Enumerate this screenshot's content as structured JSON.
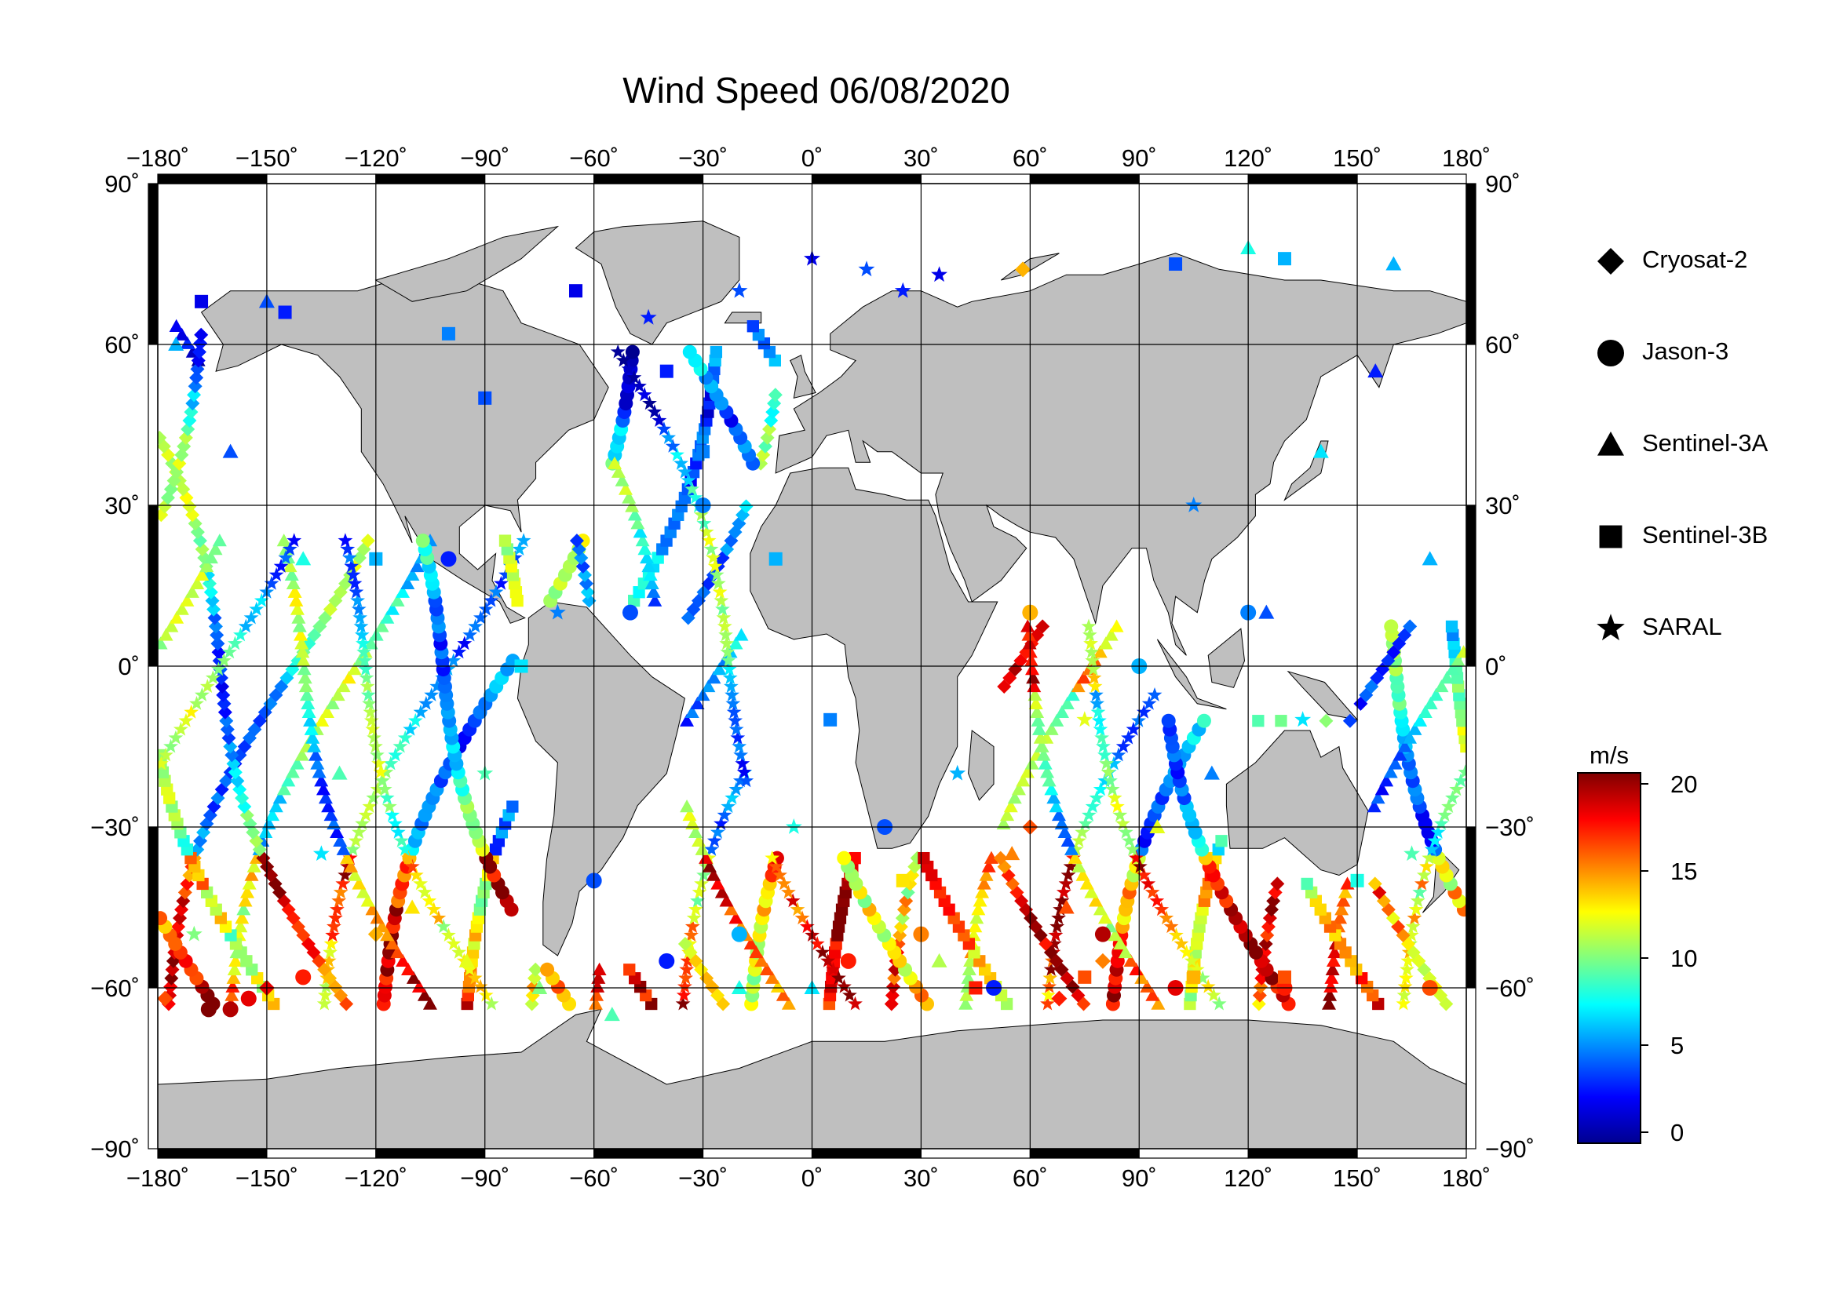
{
  "title": "Wind Speed 06/08/2020",
  "x_ticks": [
    "−180˚",
    "−150˚",
    "−120˚",
    "−90˚",
    "−60˚",
    "−30˚",
    "0˚",
    "30˚",
    "60˚",
    "90˚",
    "120˚",
    "150˚",
    "180˚"
  ],
  "y_ticks": [
    "90˚",
    "60˚",
    "30˚",
    "0˚",
    "−30˚",
    "−60˚",
    "−90˚"
  ],
  "y_ticks_right": [
    "90˚",
    "60˚",
    "30˚",
    "0˚",
    "−30˚",
    "−60˚",
    "−90˚"
  ],
  "legend": [
    {
      "label": "Cryosat-2",
      "marker": "diamond"
    },
    {
      "label": "Jason-3",
      "marker": "circle"
    },
    {
      "label": "Sentinel-3A",
      "marker": "triangle"
    },
    {
      "label": "Sentinel-3B",
      "marker": "square"
    },
    {
      "label": "SARAL",
      "marker": "star"
    }
  ],
  "colorbar": {
    "unit": "m/s",
    "min": 0,
    "max": 20,
    "tick_labels": [
      "20",
      "15",
      "10",
      "5",
      "0"
    ],
    "colors": [
      "#00008f",
      "#0000ff",
      "#0080ff",
      "#00ffff",
      "#80ff80",
      "#ffff00",
      "#ff8000",
      "#ff0000",
      "#800000"
    ]
  },
  "colors": {
    "land": "#bfbfbf",
    "ocean": "#ffffff",
    "grid": "#000000"
  },
  "chart_data": {
    "type": "scatter",
    "title": "Wind Speed 06/08/2020",
    "xlabel": "",
    "ylabel": "",
    "xlim": [
      -180,
      180
    ],
    "ylim": [
      -90,
      90
    ],
    "grid": true,
    "legend_position": "right",
    "value_unit": "m/s",
    "value_range": [
      0,
      20
    ],
    "series": [
      {
        "name": "Cryosat-2",
        "points": [
          [
            -178,
            -62,
            16
          ],
          [
            -150,
            -60,
            18
          ],
          [
            58,
            74,
            14
          ],
          [
            68,
            -62,
            17
          ],
          [
            80,
            -55,
            15
          ],
          [
            60,
            -30,
            16
          ],
          [
            -120,
            -50,
            14
          ]
        ]
      },
      {
        "name": "Jason-3",
        "points": [
          [
            -166,
            -64,
            20
          ],
          [
            -160,
            -64,
            19
          ],
          [
            -155,
            -62,
            18
          ],
          [
            -140,
            -58,
            17
          ],
          [
            -60,
            -40,
            4
          ],
          [
            -40,
            -55,
            3
          ],
          [
            -20,
            -50,
            6
          ],
          [
            10,
            -55,
            17
          ],
          [
            30,
            -50,
            15
          ],
          [
            50,
            -60,
            3
          ],
          [
            80,
            -50,
            19
          ],
          [
            100,
            -60,
            18
          ],
          [
            130,
            -60,
            17
          ],
          [
            170,
            -60,
            16
          ],
          [
            -100,
            20,
            3
          ],
          [
            -50,
            10,
            4
          ],
          [
            -30,
            30,
            5
          ],
          [
            20,
            -30,
            4
          ],
          [
            60,
            10,
            14
          ],
          [
            90,
            0,
            6
          ],
          [
            120,
            10,
            5
          ]
        ]
      },
      {
        "name": "Sentinel-3A",
        "points": [
          [
            -175,
            60,
            6
          ],
          [
            -160,
            40,
            4
          ],
          [
            -140,
            20,
            8
          ],
          [
            -130,
            -20,
            9
          ],
          [
            -110,
            -45,
            13
          ],
          [
            -95,
            -55,
            12
          ],
          [
            -75,
            -60,
            10
          ],
          [
            -55,
            -65,
            9
          ],
          [
            -20,
            -60,
            8
          ],
          [
            0,
            -60,
            7
          ],
          [
            35,
            -55,
            11
          ],
          [
            55,
            -35,
            15
          ],
          [
            70,
            -45,
            16
          ],
          [
            95,
            -30,
            12
          ],
          [
            110,
            -20,
            5
          ],
          [
            125,
            10,
            4
          ],
          [
            140,
            40,
            7
          ],
          [
            155,
            55,
            3
          ],
          [
            170,
            20,
            6
          ],
          [
            -150,
            68,
            4
          ],
          [
            120,
            78,
            8
          ],
          [
            160,
            75,
            6
          ]
        ]
      },
      {
        "name": "Sentinel-3B",
        "points": [
          [
            -168,
            68,
            2
          ],
          [
            -145,
            66,
            3
          ],
          [
            -100,
            62,
            5
          ],
          [
            -90,
            50,
            4
          ],
          [
            -65,
            70,
            2
          ],
          [
            -40,
            55,
            3
          ],
          [
            -30,
            40,
            5
          ],
          [
            -10,
            20,
            6
          ],
          [
            5,
            -10,
            5
          ],
          [
            25,
            -40,
            13
          ],
          [
            45,
            -60,
            17
          ],
          [
            75,
            -58,
            16
          ],
          [
            105,
            -58,
            14
          ],
          [
            130,
            -58,
            16
          ],
          [
            150,
            -40,
            8
          ],
          [
            -120,
            20,
            6
          ],
          [
            -80,
            0,
            7
          ],
          [
            100,
            75,
            4
          ],
          [
            130,
            76,
            6
          ]
        ]
      },
      {
        "name": "SARAL",
        "points": [
          [
            0,
            76,
            2
          ],
          [
            15,
            74,
            4
          ],
          [
            25,
            70,
            3
          ],
          [
            35,
            73,
            2
          ],
          [
            -20,
            70,
            4
          ],
          [
            -45,
            65,
            3
          ],
          [
            -170,
            -50,
            10
          ],
          [
            -135,
            -35,
            7
          ],
          [
            -90,
            -20,
            9
          ],
          [
            -70,
            10,
            5
          ],
          [
            -5,
            -30,
            8
          ],
          [
            40,
            -20,
            6
          ],
          [
            75,
            -10,
            12
          ],
          [
            105,
            30,
            5
          ],
          [
            135,
            -10,
            7
          ],
          [
            165,
            -35,
            9
          ]
        ]
      }
    ]
  }
}
